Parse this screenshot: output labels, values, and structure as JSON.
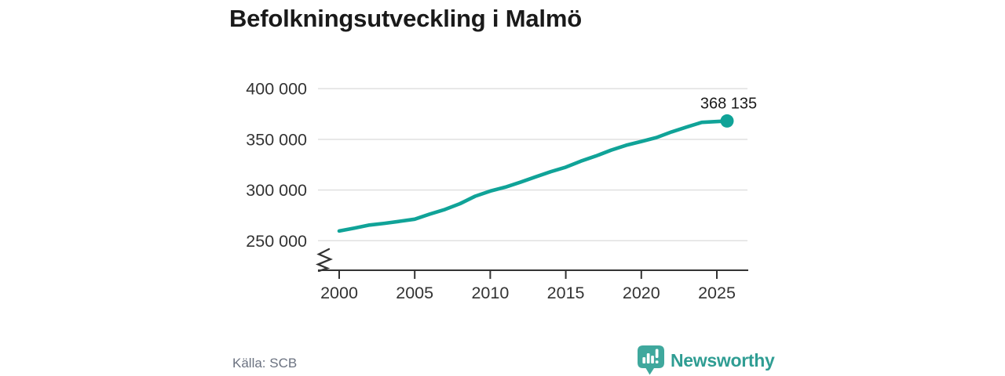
{
  "title": "Befolkningsutveckling i Malmö",
  "source": "Källa: SCB",
  "logo": {
    "name": "Newsworthy",
    "icon": "newsworthy-speech-bubble-chart-icon"
  },
  "colors": {
    "accent": "#10a398",
    "title_text": "#1a1a1a",
    "axis_text": "#333333",
    "gridline": "#dedede",
    "muted_text": "#6b7280",
    "logo_text": "#2f9d93",
    "logo_icon": "#3fa89d",
    "background": "#ffffff"
  },
  "chart_data": {
    "type": "line",
    "title": "Befolkningsutveckling i Malmö",
    "xlabel": "",
    "ylabel": "",
    "x": [
      2000,
      2001,
      2002,
      2003,
      2004,
      2005,
      2006,
      2007,
      2008,
      2009,
      2010,
      2011,
      2012,
      2013,
      2014,
      2015,
      2016,
      2017,
      2018,
      2019,
      2020,
      2021,
      2022,
      2023,
      2024,
      2025
    ],
    "values": [
      259579,
      262397,
      265481,
      267171,
      269142,
      271271,
      276244,
      280801,
      286535,
      293909,
      298963,
      302835,
      307758,
      312994,
      318107,
      322574,
      328494,
      333633,
      339313,
      344166,
      347949,
      351749,
      357377,
      362133,
      366765,
      368135
    ],
    "end_label": "368 135",
    "x_ticks": [
      "2000",
      "2005",
      "2010",
      "2015",
      "2020",
      "2025"
    ],
    "y_ticks": [
      {
        "value": 250000,
        "label": "250 000"
      },
      {
        "value": 300000,
        "label": "300 000"
      },
      {
        "value": 350000,
        "label": "350 000"
      },
      {
        "value": 400000,
        "label": "400 000"
      }
    ],
    "ylim": [
      250000,
      400000
    ],
    "axis_truncated": true,
    "grid": "horizontal",
    "legend": "none",
    "source": "Källa: SCB"
  }
}
